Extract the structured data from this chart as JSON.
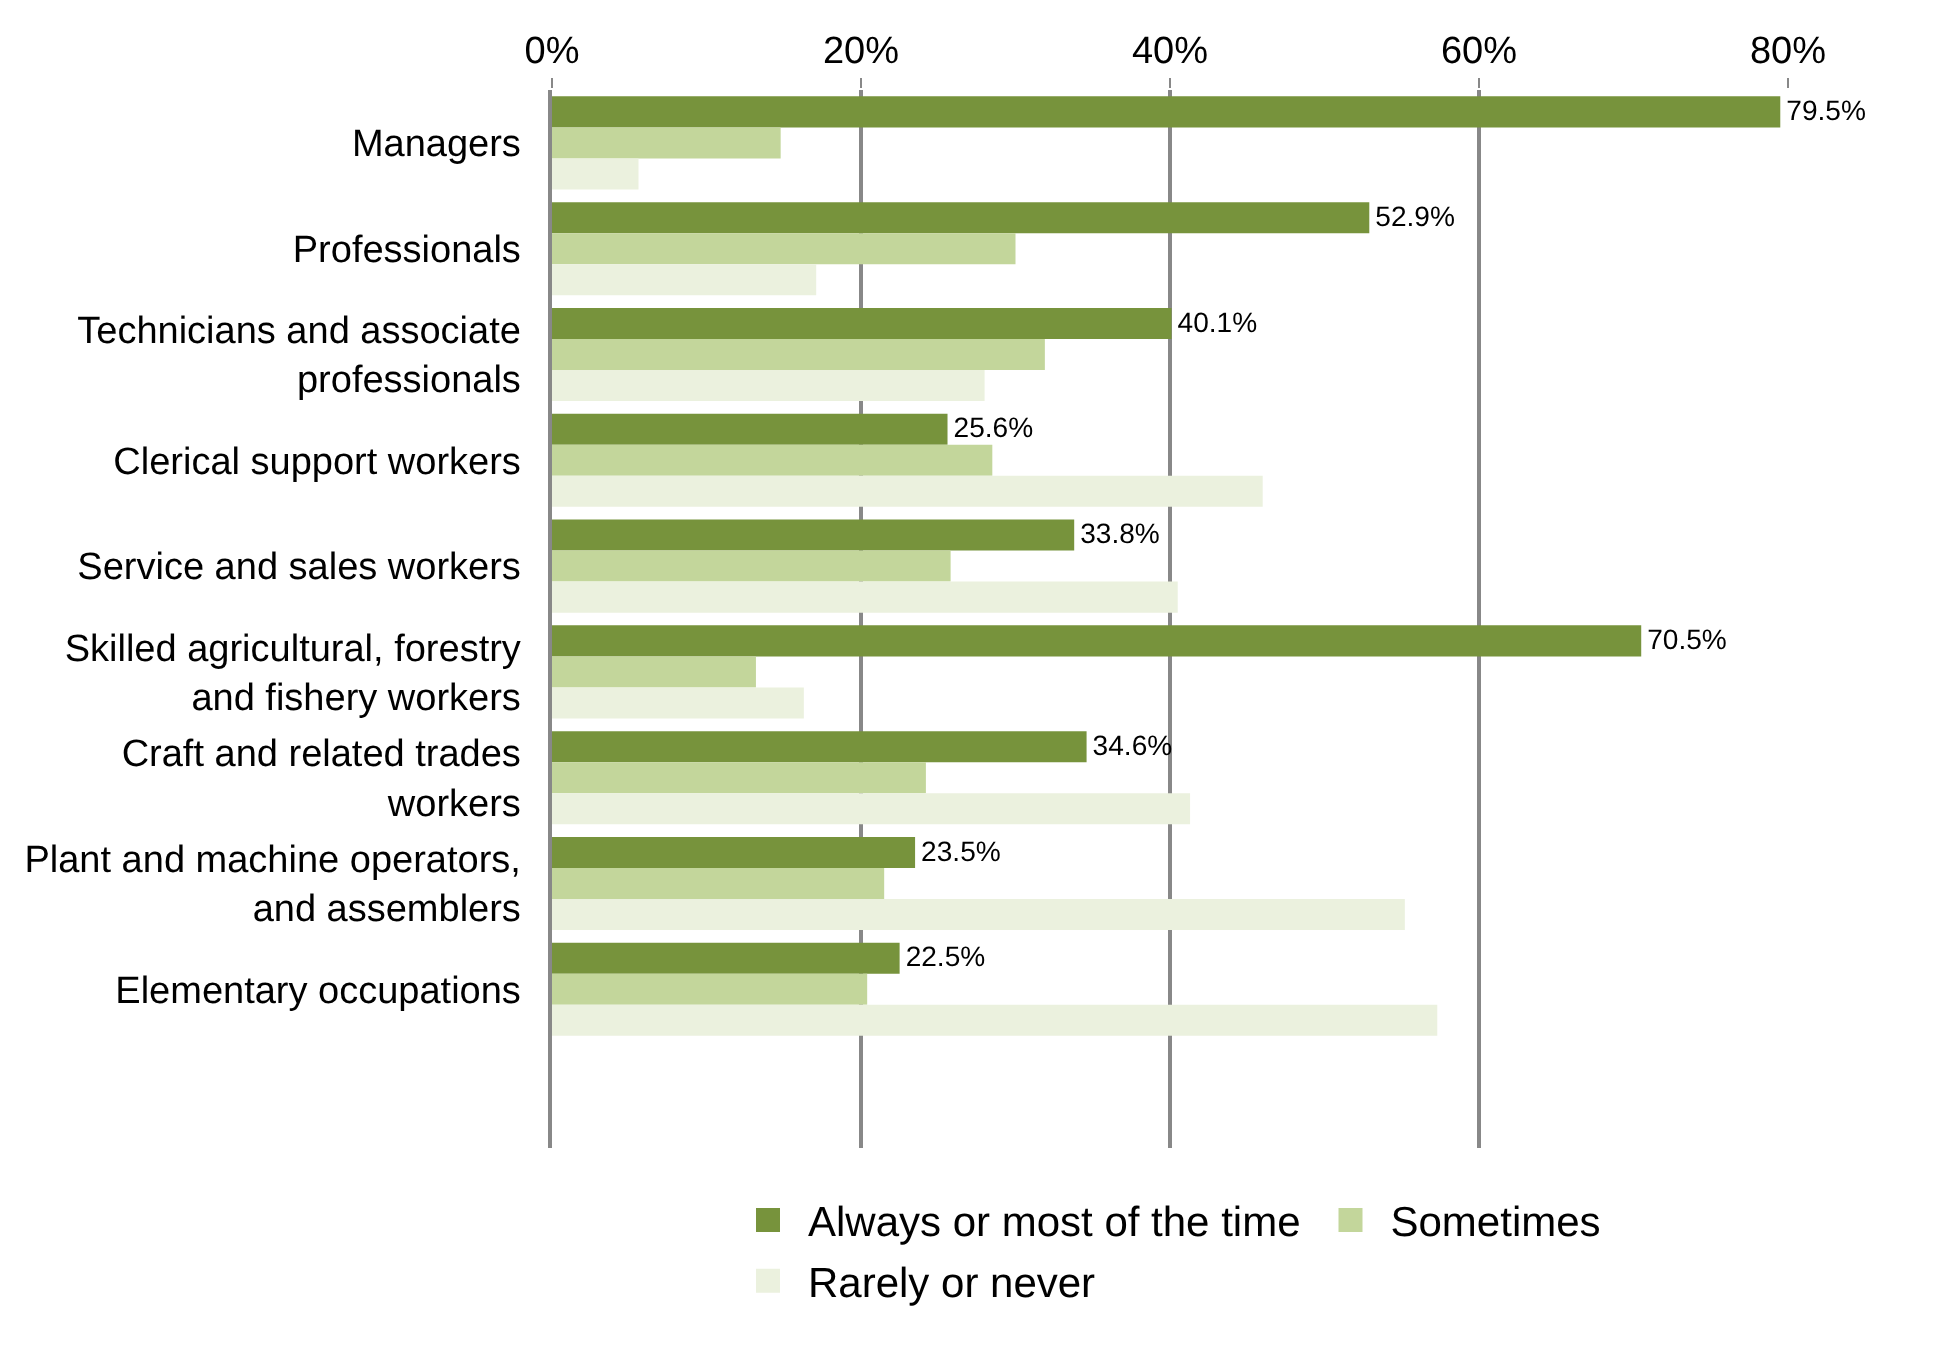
{
  "chart_data": {
    "type": "bar",
    "orientation": "horizontal",
    "categories": [
      "Managers",
      "Professionals",
      "Technicians and associate professionals",
      "Clerical support workers",
      "Service and sales workers",
      "Skilled agricultural, forestry and fishery workers",
      "Craft and related trades workers",
      "Plant and machine operators, and assemblers",
      "Elementary occupations",
      null
    ],
    "series": [
      {
        "name": "Always or most of the time",
        "color": "#77933c",
        "values": [
          79.5,
          52.9,
          40.1,
          25.6,
          33.8,
          70.5,
          34.6,
          23.5,
          22.5,
          null
        ],
        "value_labels": [
          "79.5%",
          "52.9%",
          "40.1%",
          "25.6%",
          "33.8%",
          "70.5%",
          "34.6%",
          "23.5%",
          "22.5%",
          null
        ]
      },
      {
        "name": "Sometimes",
        "color": "#c3d69b",
        "values": [
          14.8,
          30.0,
          31.9,
          28.5,
          25.8,
          13.2,
          24.2,
          21.5,
          20.4,
          null
        ]
      },
      {
        "name": "Rarely or never",
        "color": "#ebf1de",
        "values": [
          5.6,
          17.1,
          28.0,
          46.0,
          40.5,
          16.3,
          41.3,
          55.2,
          57.3,
          null
        ]
      }
    ],
    "xlim": [
      0,
      80
    ],
    "xticks": [
      {
        "value": 0,
        "label": "0%"
      },
      {
        "value": 20,
        "label": "20%"
      },
      {
        "value": 40,
        "label": "40%"
      },
      {
        "value": 60,
        "label": "60%"
      },
      {
        "value": 80,
        "label": "80%"
      }
    ],
    "grid": "x",
    "legend": "bottom"
  }
}
